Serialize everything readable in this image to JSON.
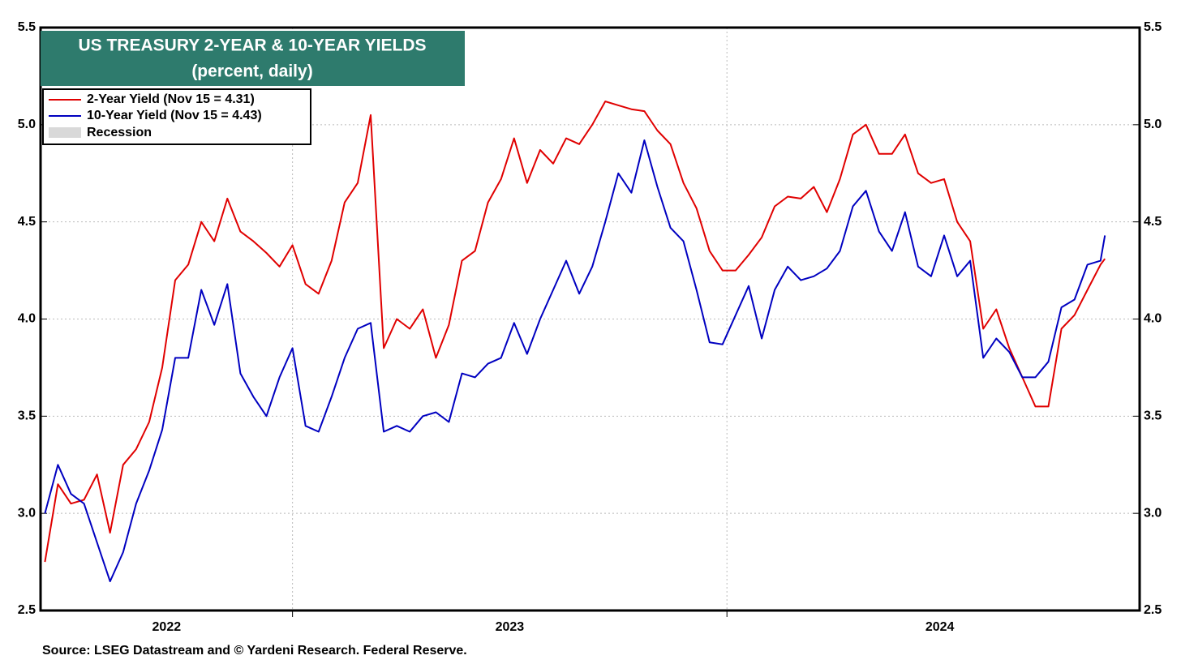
{
  "chart_data": {
    "type": "line",
    "title": "US TREASURY 2-YEAR & 10-YEAR YIELDS",
    "subtitle": "(percent, daily)",
    "source": "Source: LSEG Datastream and © Yardeni Research. Federal Reserve.",
    "x": [
      2022.43,
      2022.46,
      2022.49,
      2022.52,
      2022.55,
      2022.58,
      2022.61,
      2022.64,
      2022.67,
      2022.7,
      2022.73,
      2022.76,
      2022.79,
      2022.82,
      2022.85,
      2022.88,
      2022.91,
      2022.94,
      2022.97,
      2023.0,
      2023.03,
      2023.06,
      2023.09,
      2023.12,
      2023.15,
      2023.18,
      2023.21,
      2023.24,
      2023.27,
      2023.3,
      2023.33,
      2023.36,
      2023.39,
      2023.42,
      2023.45,
      2023.48,
      2023.51,
      2023.54,
      2023.57,
      2023.6,
      2023.63,
      2023.66,
      2023.69,
      2023.72,
      2023.75,
      2023.78,
      2023.81,
      2023.84,
      2023.87,
      2023.9,
      2023.93,
      2023.96,
      2023.99,
      2024.02,
      2024.05,
      2024.08,
      2024.11,
      2024.14,
      2024.17,
      2024.2,
      2024.23,
      2024.26,
      2024.29,
      2024.32,
      2024.35,
      2024.38,
      2024.41,
      2024.44,
      2024.47,
      2024.5,
      2024.53,
      2024.56,
      2024.59,
      2024.62,
      2024.65,
      2024.68,
      2024.71,
      2024.74,
      2024.77,
      2024.8,
      2024.83,
      2024.86,
      2024.87
    ],
    "series": [
      {
        "name": "2-Year Yield (Nov 15 = 4.31)",
        "color": "#e00000",
        "values": [
          2.75,
          3.15,
          3.05,
          3.07,
          3.2,
          2.9,
          3.25,
          3.33,
          3.47,
          3.75,
          4.2,
          4.28,
          4.5,
          4.4,
          4.62,
          4.45,
          4.4,
          4.34,
          4.27,
          4.38,
          4.18,
          4.13,
          4.3,
          4.6,
          4.7,
          5.05,
          3.85,
          4.0,
          3.95,
          4.05,
          3.8,
          3.97,
          4.3,
          4.35,
          4.6,
          4.72,
          4.93,
          4.7,
          4.87,
          4.8,
          4.93,
          4.9,
          5.0,
          5.12,
          5.1,
          5.08,
          5.07,
          4.97,
          4.9,
          4.7,
          4.57,
          4.35,
          4.25,
          4.25,
          4.33,
          4.42,
          4.58,
          4.63,
          4.62,
          4.68,
          4.55,
          4.72,
          4.95,
          5.0,
          4.85,
          4.85,
          4.95,
          4.75,
          4.7,
          4.72,
          4.5,
          4.4,
          3.95,
          4.05,
          3.85,
          3.7,
          3.55,
          3.55,
          3.95,
          4.02,
          4.15,
          4.28,
          4.31
        ]
      },
      {
        "name": "10-Year Yield (Nov 15 = 4.43)",
        "color": "#0000c0",
        "values": [
          3.0,
          3.25,
          3.1,
          3.05,
          2.85,
          2.65,
          2.8,
          3.05,
          3.22,
          3.43,
          3.8,
          3.8,
          4.15,
          3.97,
          4.18,
          3.72,
          3.6,
          3.5,
          3.7,
          3.85,
          3.45,
          3.42,
          3.6,
          3.8,
          3.95,
          3.98,
          3.42,
          3.45,
          3.42,
          3.5,
          3.52,
          3.47,
          3.72,
          3.7,
          3.77,
          3.8,
          3.98,
          3.82,
          4.0,
          4.15,
          4.3,
          4.13,
          4.27,
          4.5,
          4.75,
          4.65,
          4.92,
          4.68,
          4.47,
          4.4,
          4.15,
          3.88,
          3.87,
          4.02,
          4.17,
          3.9,
          4.15,
          4.27,
          4.2,
          4.22,
          4.26,
          4.35,
          4.58,
          4.66,
          4.45,
          4.35,
          4.55,
          4.27,
          4.22,
          4.43,
          4.22,
          4.3,
          3.8,
          3.9,
          3.83,
          3.7,
          3.7,
          3.78,
          4.06,
          4.1,
          4.28,
          4.3,
          4.43
        ]
      }
    ],
    "legend_extra": {
      "name": "Recession",
      "color": "#d9d9d9"
    },
    "xlim": [
      2022.42,
      2024.95
    ],
    "xticks": [
      {
        "value": 2022.71,
        "label": "2022"
      },
      {
        "value": 2023.5,
        "label": "2023"
      },
      {
        "value": 2024.49,
        "label": "2024"
      }
    ],
    "xgrid": [
      2023,
      2024
    ],
    "ylim": [
      2.5,
      5.5
    ],
    "yticks": [
      2.5,
      {
        "value": 3,
        "label": "3.0"
      },
      3.5,
      {
        "value": 4,
        "label": "4.0"
      },
      4.5,
      {
        "value": 5,
        "label": "5.0"
      },
      5.5
    ],
    "grid": true,
    "legend": "upper left",
    "title_color": "#2e7b6d"
  }
}
